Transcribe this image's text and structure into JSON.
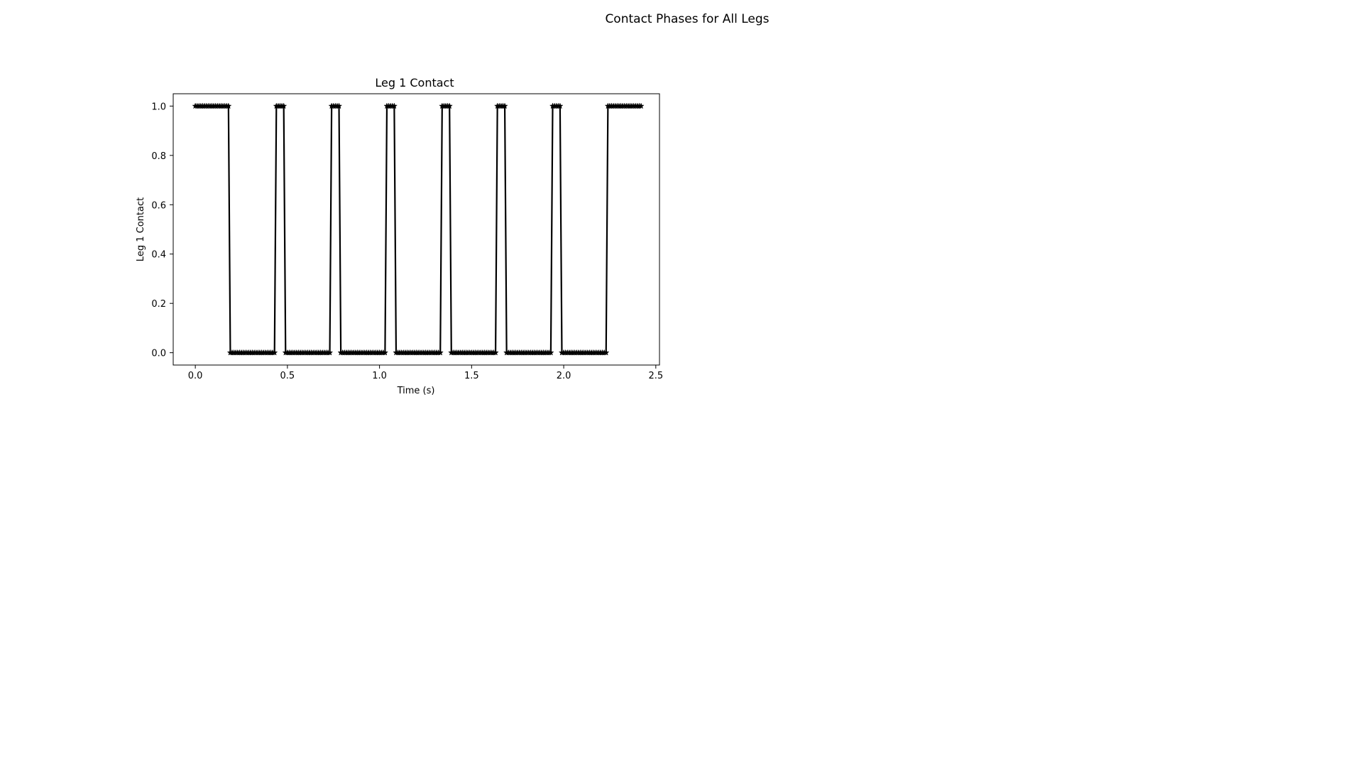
{
  "figure": {
    "suptitle": "Contact Phases for All Legs"
  },
  "chart_data": {
    "type": "line",
    "title": "Leg 1 Contact",
    "xlabel": "Time (s)",
    "ylabel": "Leg 1 Contact",
    "xlim": [
      -0.12,
      2.52
    ],
    "ylim": [
      -0.05,
      1.05
    ],
    "xticks": [
      0.0,
      0.5,
      1.0,
      1.5,
      2.0,
      2.5
    ],
    "xtick_labels": [
      "0.0",
      "0.5",
      "1.0",
      "1.5",
      "2.0",
      "2.5"
    ],
    "yticks": [
      0.0,
      0.2,
      0.4,
      0.6,
      0.8,
      1.0
    ],
    "ytick_labels": [
      "0.0",
      "0.2",
      "0.4",
      "0.6",
      "0.8",
      "1.0"
    ],
    "grid": false,
    "legend": false,
    "series": [
      {
        "color": "#000000",
        "marker": "star",
        "sample_step": 0.01,
        "t_start": 0.0,
        "t_end": 2.42,
        "contact_segments": [
          [
            0.0,
            0.18,
            1
          ],
          [
            0.19,
            0.43,
            0
          ],
          [
            0.44,
            0.48,
            1
          ],
          [
            0.49,
            0.73,
            0
          ],
          [
            0.74,
            0.78,
            1
          ],
          [
            0.79,
            1.03,
            0
          ],
          [
            1.04,
            1.08,
            1
          ],
          [
            1.09,
            1.33,
            0
          ],
          [
            1.34,
            1.38,
            1
          ],
          [
            1.39,
            1.63,
            0
          ],
          [
            1.64,
            1.68,
            1
          ],
          [
            1.69,
            1.93,
            0
          ],
          [
            1.94,
            1.98,
            1
          ],
          [
            1.99,
            2.23,
            0
          ],
          [
            2.24,
            2.42,
            1
          ]
        ]
      }
    ]
  }
}
